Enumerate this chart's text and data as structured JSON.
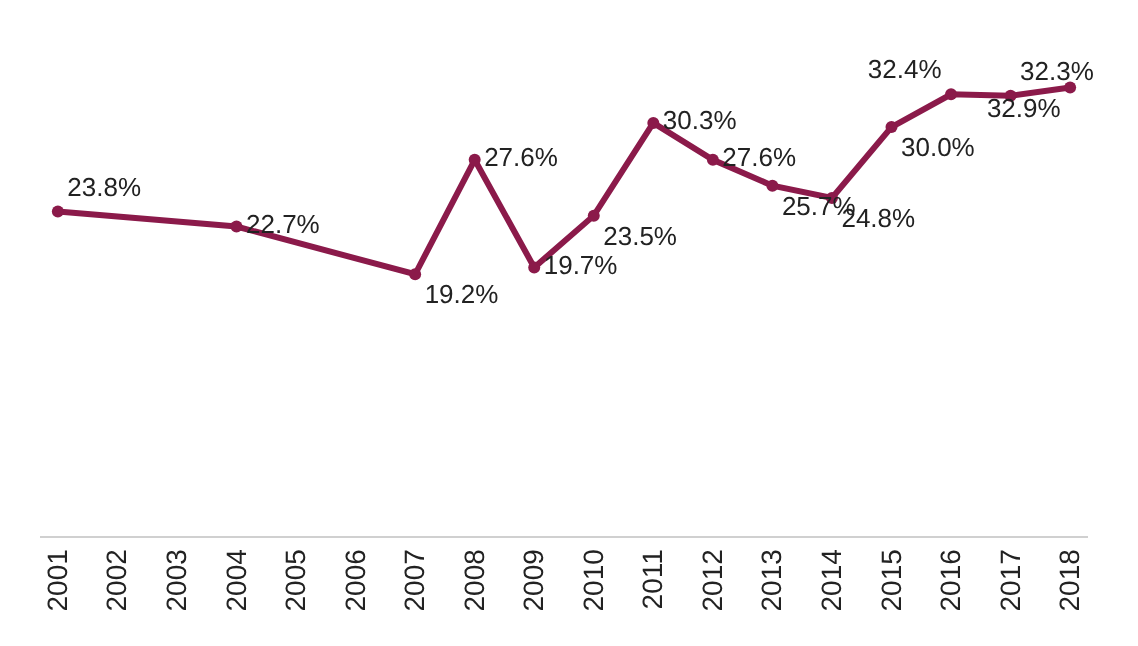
{
  "chart_data": {
    "type": "line",
    "categories": [
      "2001",
      "2002",
      "2003",
      "2004",
      "2005",
      "2006",
      "2007",
      "2008",
      "2009",
      "2010",
      "2011",
      "2012",
      "2013",
      "2014",
      "2015",
      "2016",
      "2017",
      "2018"
    ],
    "series": [
      {
        "color": "#8b1a4a",
        "values": [
          23.8,
          null,
          null,
          22.7,
          null,
          null,
          19.2,
          27.6,
          19.7,
          23.5,
          30.3,
          27.6,
          25.7,
          24.8,
          30.0,
          32.4,
          32.3,
          32.9
        ],
        "value_labels": [
          "23.8%",
          null,
          null,
          "22.7%",
          null,
          null,
          "19.2%",
          "27.6%",
          "19.7%",
          "23.5%",
          "30.3%",
          "27.6%",
          "25.7%",
          "24.8%",
          "30.0%",
          "32.4%",
          "32.3%",
          "32.9%"
        ]
      }
    ],
    "marker": "circle",
    "line_style": "solid"
  }
}
